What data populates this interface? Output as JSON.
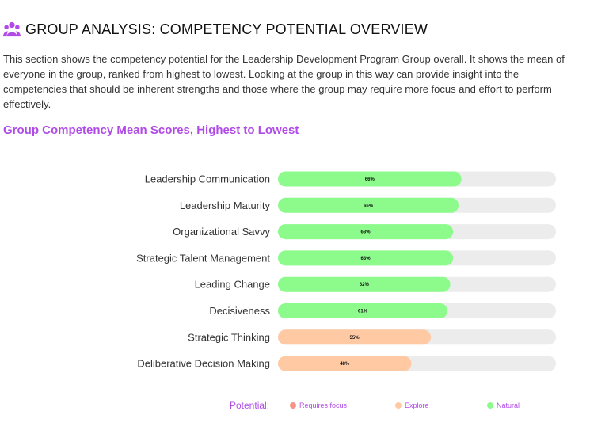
{
  "header": {
    "icon": "users-icon",
    "title": "GROUP ANALYSIS: COMPETENCY POTENTIAL OVERVIEW",
    "description": "This section shows the competency potential for the Leadership Development Program Group overall. It shows the mean of everyone in the group, ranked from highest to lowest. Looking at the group in this way can provide insight into the competencies that should be inherent strengths and those where the group may require more focus and effort to perform effectively."
  },
  "subtitle": "Group Competency Mean Scores, Highest to Lowest",
  "colors": {
    "accent": "#b14be8",
    "natural": "#8cfb8c",
    "explore": "#ffc9a3",
    "requires_focus": "#f6948a",
    "track": "#ececec"
  },
  "chart_data": {
    "type": "bar",
    "orientation": "horizontal",
    "categories": [
      "Leadership Communication",
      "Leadership Maturity",
      "Organizational Savvy",
      "Strategic Talent Management",
      "Leading Change",
      "Decisiveness",
      "Strategic Thinking",
      "Deliberative Decision Making"
    ],
    "values": [
      66,
      65,
      63,
      63,
      62,
      61,
      55,
      48
    ],
    "value_labels": [
      "66%",
      "65%",
      "63%",
      "63%",
      "62%",
      "61%",
      "55%",
      "48%"
    ],
    "potential": [
      "Natural",
      "Natural",
      "Natural",
      "Natural",
      "Natural",
      "Natural",
      "Explore",
      "Explore"
    ],
    "xlim": [
      0,
      100
    ],
    "grid": false
  },
  "legend": {
    "title": "Potential:",
    "items": [
      {
        "label": "Requires focus",
        "color": "#f6948a"
      },
      {
        "label": "Explore",
        "color": "#ffc9a3"
      },
      {
        "label": "Natural",
        "color": "#8cfb8c"
      }
    ]
  }
}
